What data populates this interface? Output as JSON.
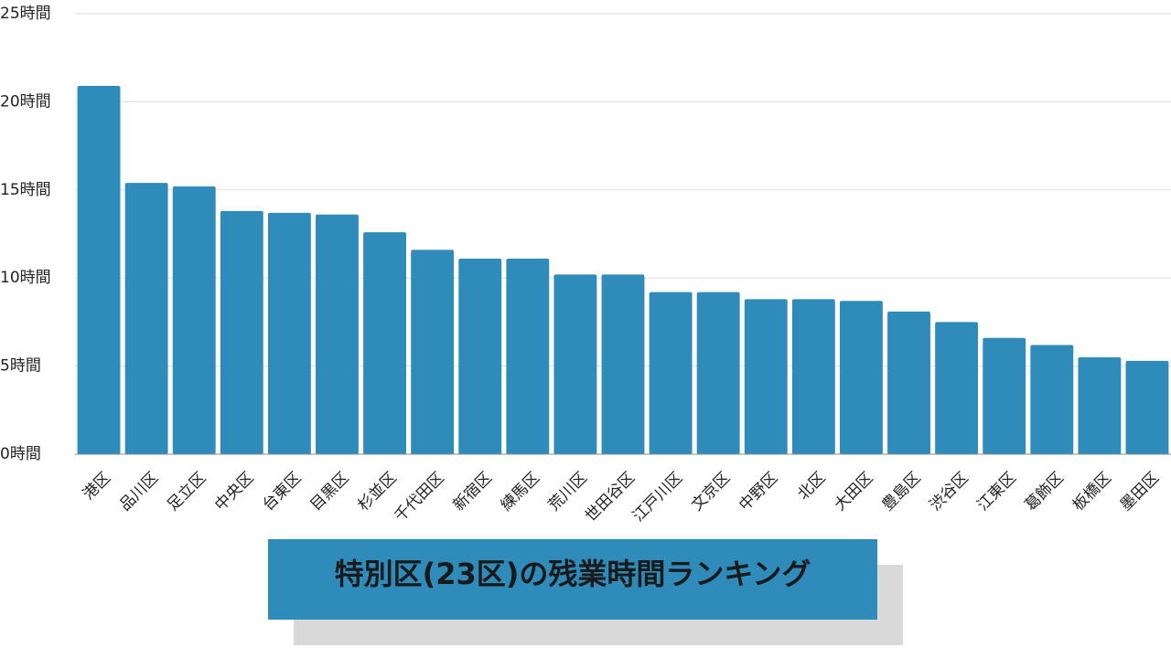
{
  "chart_data": {
    "type": "bar",
    "title": "特別区(23区)の残業時間ランキング",
    "categories": [
      "港区",
      "品川区",
      "足立区",
      "中央区",
      "台東区",
      "目黒区",
      "杉並区",
      "千代田区",
      "新宿区",
      "練馬区",
      "荒川区",
      "世田谷区",
      "江戸川区",
      "文京区",
      "中野区",
      "北区",
      "大田区",
      "豊島区",
      "渋谷区",
      "江東区",
      "葛飾区",
      "板橋区",
      "墨田区"
    ],
    "values": [
      20.9,
      15.4,
      15.2,
      13.8,
      13.7,
      13.6,
      12.6,
      11.6,
      11.1,
      11.1,
      10.2,
      10.2,
      9.2,
      9.2,
      8.8,
      8.8,
      8.7,
      8.1,
      7.5,
      6.6,
      6.2,
      5.5,
      5.3
    ],
    "color": "#2e8bba",
    "ylim": [
      0,
      25
    ],
    "yticks": [
      {
        "value": 0,
        "label": "0時間"
      },
      {
        "value": 5,
        "label": "5時間"
      },
      {
        "value": 10,
        "label": "10時間"
      },
      {
        "value": 15,
        "label": "15時間"
      },
      {
        "value": 20,
        "label": "20時間"
      },
      {
        "value": 25,
        "label": "25時間"
      }
    ],
    "grid": true
  }
}
